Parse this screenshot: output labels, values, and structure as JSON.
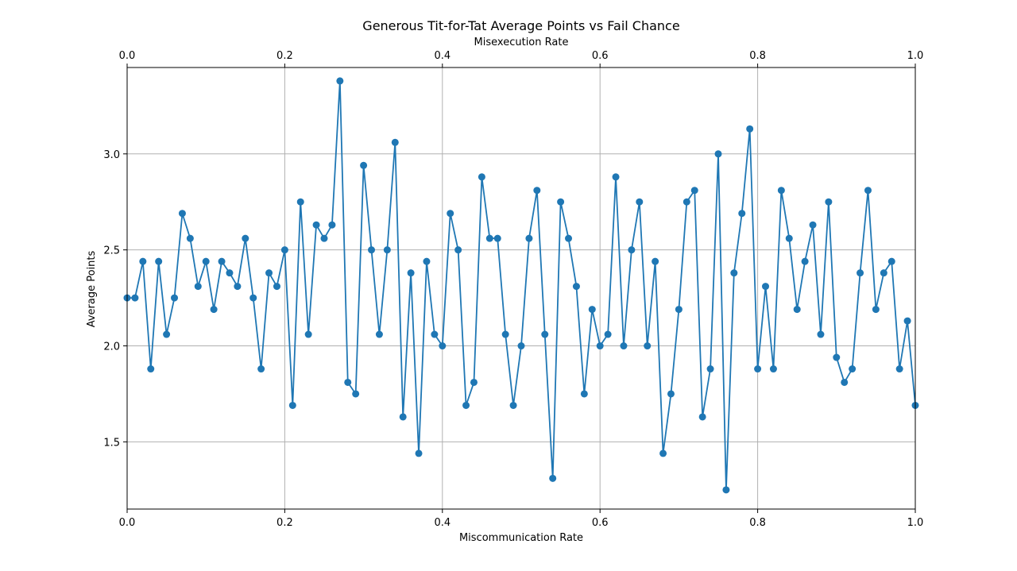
{
  "chart_data": {
    "type": "line",
    "title": "Generous Tit-for-Tat Average Points vs Fail Chance",
    "xlabel": "Miscommunication Rate",
    "x2label": "Misexecution Rate",
    "ylabel": "Average Points",
    "xlim": [
      0,
      1
    ],
    "ylim": [
      1.15,
      3.45
    ],
    "xticks": [
      0,
      0.2,
      0.4,
      0.6,
      0.8,
      1.0
    ],
    "xtick_labels": [
      "0.0",
      "0.2",
      "0.4",
      "0.6",
      "0.8",
      "1.0"
    ],
    "yticks": [
      1.5,
      2.0,
      2.5,
      3.0
    ],
    "ytick_labels": [
      "1.5",
      "2.0",
      "2.5",
      "3.0"
    ],
    "grid": true,
    "marker": "circle",
    "color": "#1f77b4",
    "series": [
      {
        "x": [
          0.0,
          0.01,
          0.02,
          0.03,
          0.04,
          0.05,
          0.06,
          0.07,
          0.08,
          0.09,
          0.1,
          0.11,
          0.12,
          0.13,
          0.14,
          0.15,
          0.16,
          0.17,
          0.18,
          0.19,
          0.2,
          0.21,
          0.22,
          0.23,
          0.24,
          0.25,
          0.26,
          0.27,
          0.28,
          0.29,
          0.3,
          0.31,
          0.32,
          0.33,
          0.34,
          0.35,
          0.36,
          0.37,
          0.38,
          0.39,
          0.4,
          0.41,
          0.42,
          0.43,
          0.44,
          0.45,
          0.46,
          0.47,
          0.48,
          0.49,
          0.5,
          0.51,
          0.52,
          0.53,
          0.54,
          0.55,
          0.56,
          0.57,
          0.58,
          0.59,
          0.6,
          0.61,
          0.62,
          0.63,
          0.64,
          0.65,
          0.66,
          0.67,
          0.68,
          0.69,
          0.7,
          0.71,
          0.72,
          0.73,
          0.74,
          0.75,
          0.76,
          0.77,
          0.78,
          0.79,
          0.8,
          0.81,
          0.82,
          0.83,
          0.84,
          0.85,
          0.86,
          0.87,
          0.88,
          0.89,
          0.9,
          0.91,
          0.92,
          0.93,
          0.94,
          0.95,
          0.96,
          0.97,
          0.98,
          0.99,
          1.0
        ],
        "y": [
          2.25,
          2.25,
          2.44,
          1.88,
          2.44,
          2.06,
          2.25,
          2.69,
          2.56,
          2.31,
          2.44,
          2.19,
          2.44,
          2.38,
          2.31,
          2.56,
          2.25,
          1.88,
          2.38,
          2.31,
          2.5,
          1.69,
          2.75,
          2.06,
          2.63,
          2.56,
          2.63,
          3.38,
          1.81,
          1.75,
          2.94,
          2.5,
          2.06,
          2.5,
          3.06,
          1.63,
          2.38,
          1.44,
          2.44,
          2.06,
          2.0,
          2.69,
          2.5,
          1.69,
          1.81,
          2.88,
          2.56,
          2.56,
          2.06,
          1.69,
          2.0,
          2.56,
          2.81,
          2.06,
          1.31,
          2.75,
          2.56,
          2.31,
          1.75,
          2.19,
          2.0,
          2.06,
          2.88,
          2.0,
          2.5,
          2.75,
          2.0,
          2.44,
          1.44,
          1.75,
          2.19,
          2.75,
          2.81,
          1.63,
          1.88,
          3.0,
          1.25,
          2.38,
          2.69,
          3.13,
          1.88,
          2.31,
          1.88,
          2.81,
          2.56,
          2.19,
          2.44,
          2.63,
          2.06,
          2.75,
          1.94,
          1.81,
          1.88,
          2.38,
          2.81,
          2.19,
          2.38,
          2.44,
          1.88,
          2.13,
          1.69
        ]
      }
    ]
  }
}
